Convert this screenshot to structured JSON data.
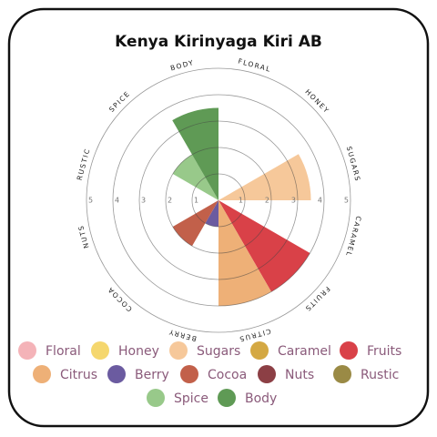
{
  "chart_data": {
    "type": "polar-area",
    "title": "Kenya Kirinyaga Kiri AB",
    "categories": [
      "FLORAL",
      "HONEY",
      "SUGARS",
      "CARAMEL",
      "FRUITS",
      "CITRUS",
      "BERRY",
      "COCOA",
      "NUTS",
      "RUSTIC",
      "SPICE",
      "BODY"
    ],
    "legend": [
      "Floral",
      "Honey",
      "Sugars",
      "Caramel",
      "Fruits",
      "Citrus",
      "Berry",
      "Cocoa",
      "Nuts",
      "Rustic",
      "Spice",
      "Body"
    ],
    "values": [
      0,
      0,
      3.5,
      0,
      4,
      4,
      1,
      2,
      0,
      0,
      2,
      3.5
    ],
    "colors": [
      "#f4b3b8",
      "#f5d76e",
      "#f6c89a",
      "#d4a843",
      "#d94148",
      "#eeb077",
      "#6b5ba0",
      "#c2604a",
      "#8c3f45",
      "#9a8a45",
      "#98c98a",
      "#5f9a55"
    ],
    "rlim": [
      0,
      5
    ],
    "rticks": [
      1,
      2,
      3,
      4,
      5
    ],
    "grid": true
  }
}
